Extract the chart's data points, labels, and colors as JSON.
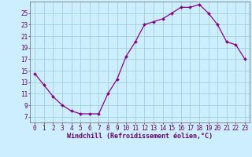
{
  "x": [
    0,
    1,
    2,
    3,
    4,
    5,
    6,
    7,
    8,
    9,
    10,
    11,
    12,
    13,
    14,
    15,
    16,
    17,
    18,
    19,
    20,
    21,
    22,
    23
  ],
  "y": [
    14.5,
    12.5,
    10.5,
    9.0,
    8.0,
    7.5,
    7.5,
    7.5,
    11.0,
    13.5,
    17.5,
    20.0,
    23.0,
    23.5,
    24.0,
    25.0,
    26.0,
    26.0,
    26.5,
    25.0,
    23.0,
    20.0,
    19.5,
    17.0
  ],
  "line_color": "#880088",
  "marker": "D",
  "marker_size": 2.0,
  "linewidth": 0.9,
  "background_color": "#cceeff",
  "grid_color": "#99cccc",
  "xlabel": "Windchill (Refroidissement éolien,°C)",
  "xlabel_fontsize": 6.0,
  "ylabel_ticks": [
    7,
    9,
    11,
    13,
    15,
    17,
    19,
    21,
    23,
    25
  ],
  "xlim": [
    -0.5,
    23.5
  ],
  "ylim": [
    6.0,
    27.0
  ],
  "tick_fontsize": 5.5,
  "xtick_labels": [
    "0",
    "1",
    "2",
    "3",
    "4",
    "5",
    "6",
    "7",
    "8",
    "9",
    "10",
    "11",
    "12",
    "13",
    "14",
    "15",
    "16",
    "17",
    "18",
    "19",
    "20",
    "21",
    "22",
    "23"
  ]
}
